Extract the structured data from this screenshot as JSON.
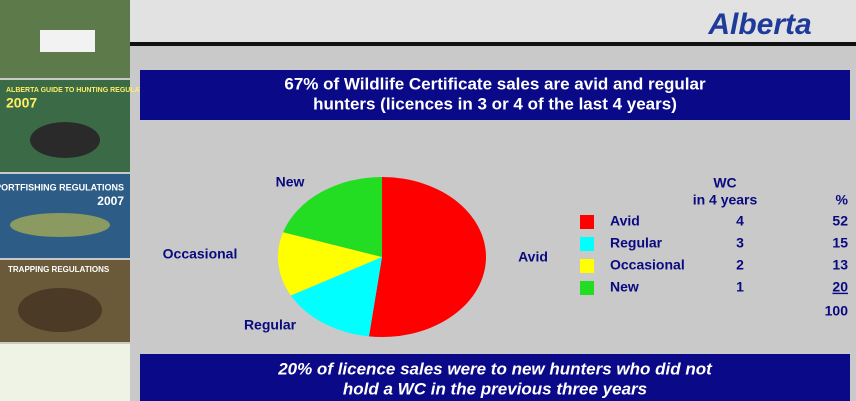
{
  "logo": "Alberta",
  "sidebar": [
    "ALBERTA GUIDE TO HUNTING REGULATIONS",
    "2007",
    "SPORTFISHING REGULATIONS",
    "2007",
    "TRAPPING REGULATIONS"
  ],
  "chart_data": {
    "type": "pie",
    "title": [
      "67% of Wildlife Certificate sales are avid and regular",
      "hunters (licences in 3 or 4 of the last 4 years)"
    ],
    "categories": [
      "Avid",
      "Regular",
      "Occasional",
      "New"
    ],
    "values": [
      52,
      15,
      13,
      20
    ],
    "colors": [
      "#ff0000",
      "#00ffff",
      "#ffff00",
      "#22dd22"
    ],
    "table": {
      "header": [
        "WC",
        "in 4 years",
        "%"
      ],
      "wc_years": [
        4,
        3,
        2,
        1
      ],
      "total": 100
    },
    "footer": [
      "20% of licence sales were to new hunters who did not",
      "hold a WC in the previous three years"
    ]
  }
}
